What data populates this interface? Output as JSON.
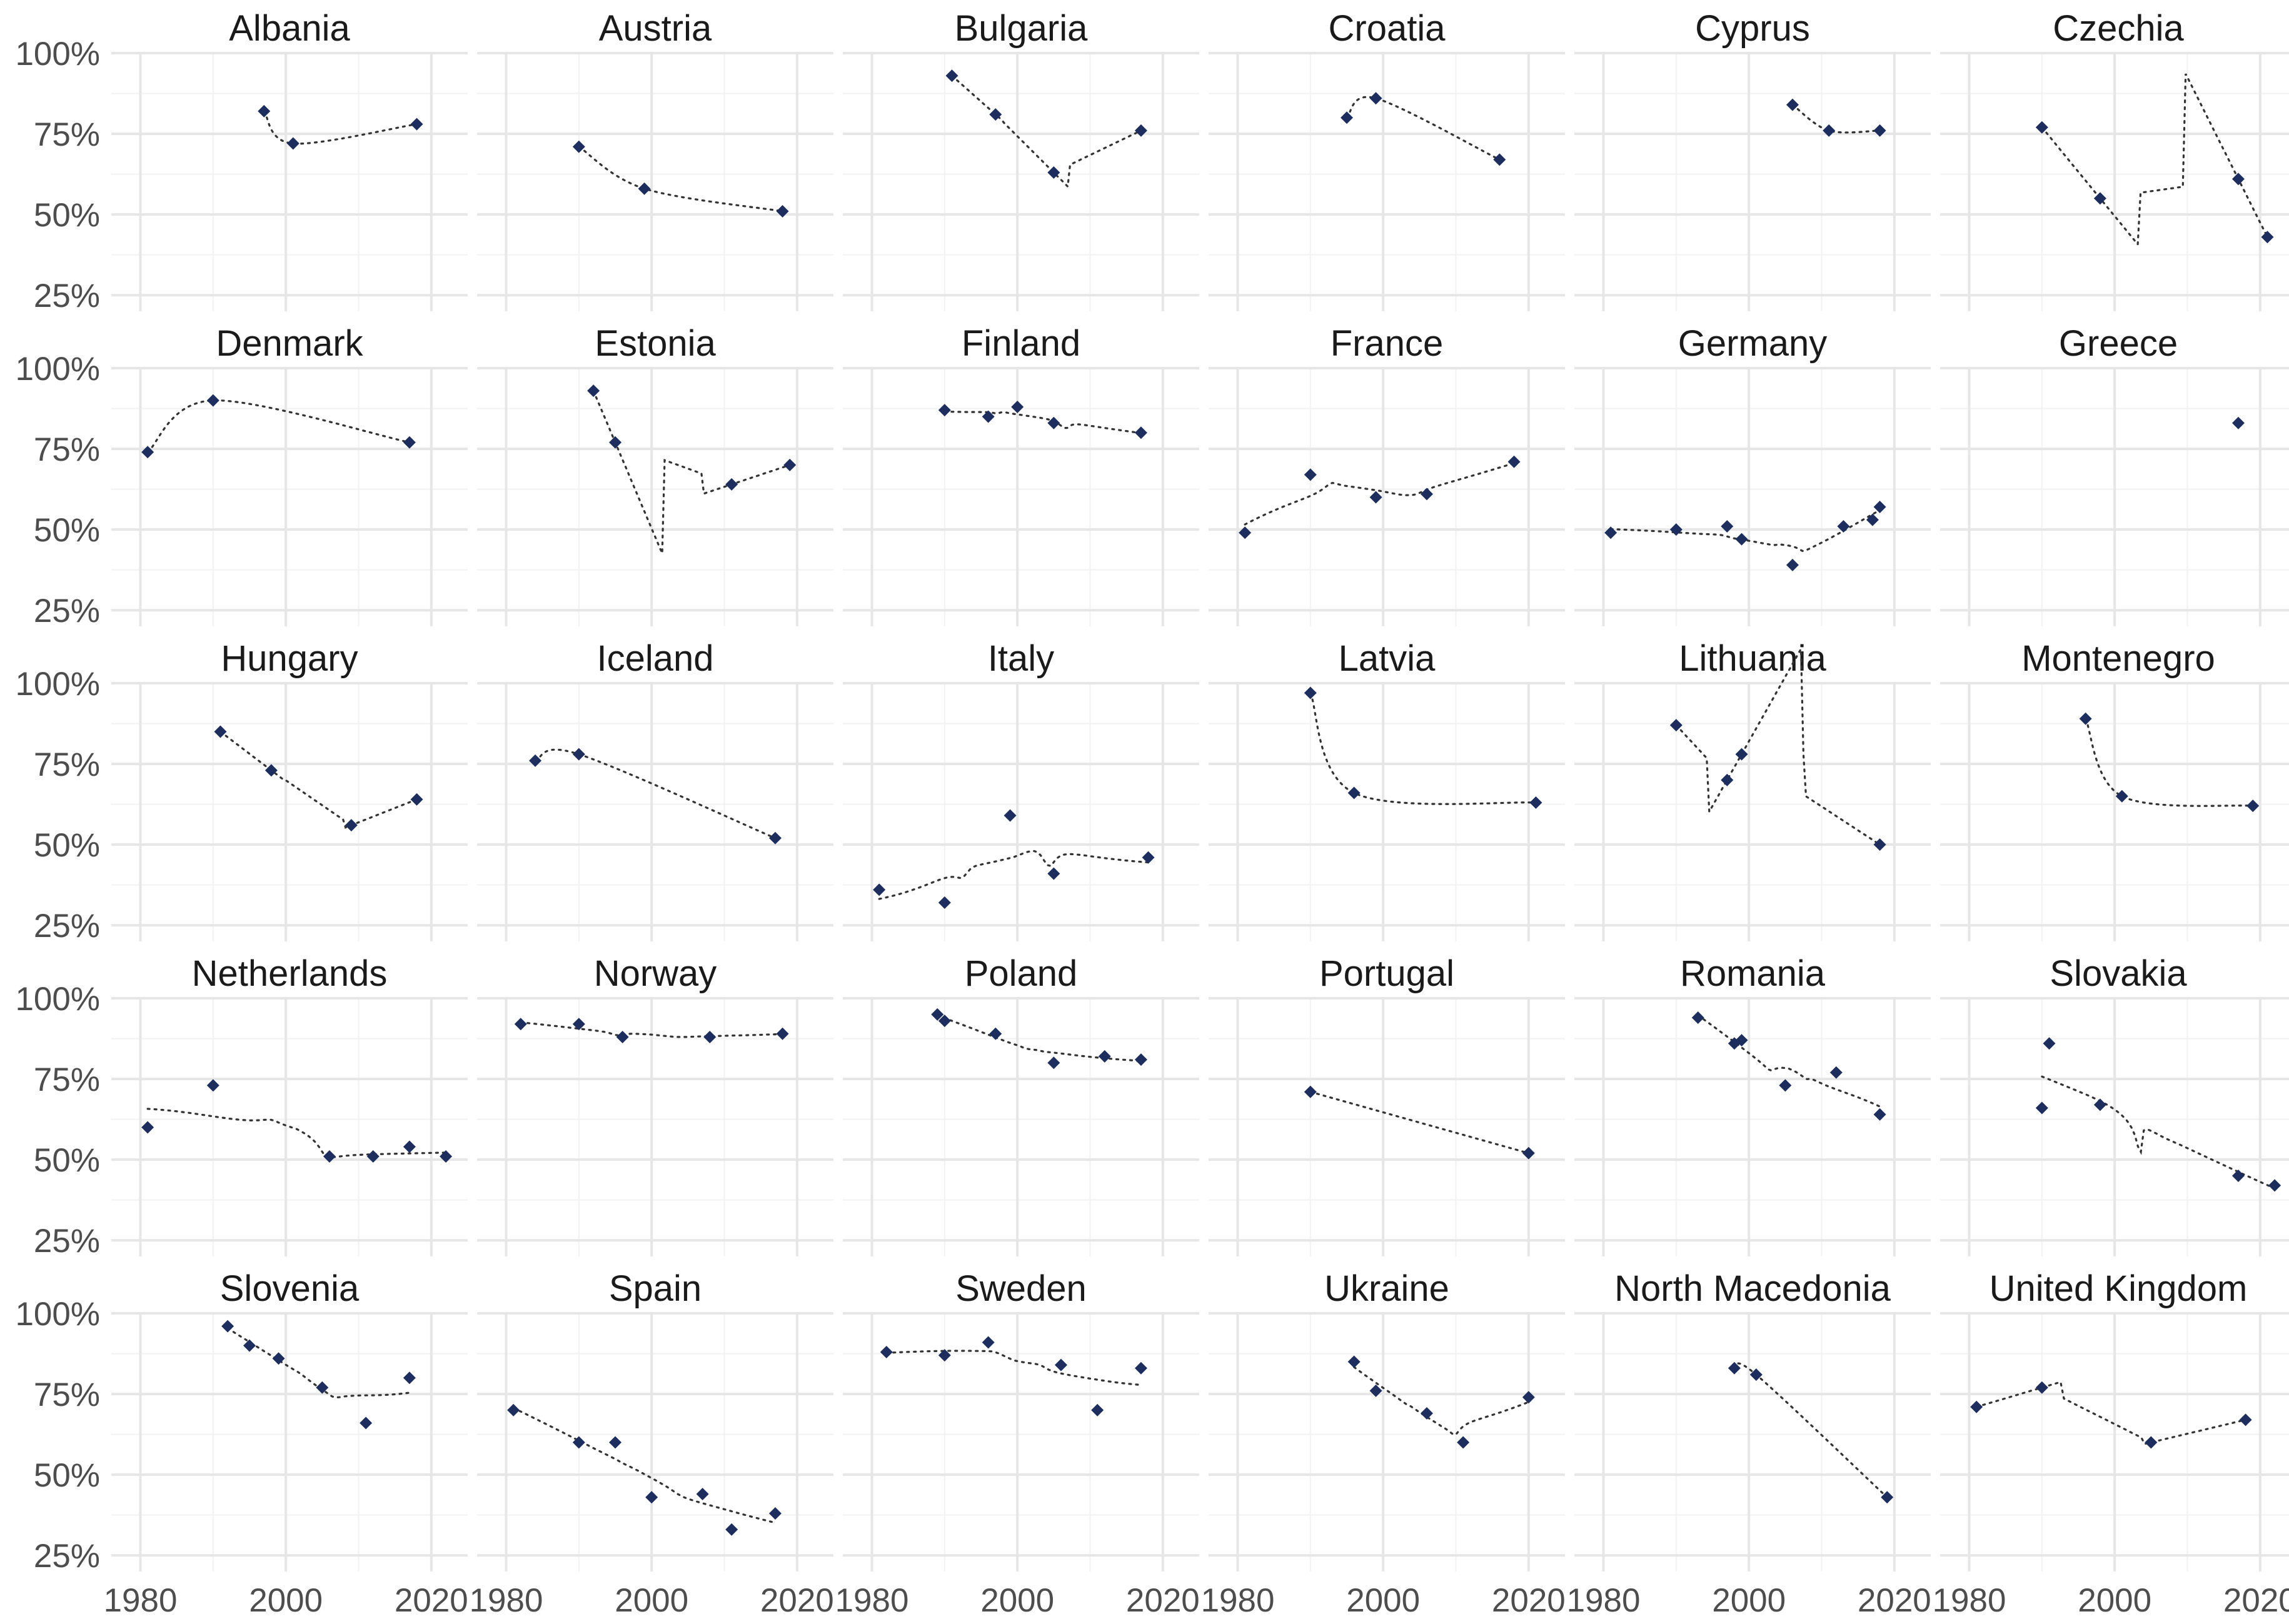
{
  "colors": {
    "point": "#1c2d5e",
    "trend": "#333333",
    "grid": "#e6e6e6",
    "background": "#ffffff"
  },
  "chart_data": {
    "type": "scatter",
    "facet_layout": {
      "columns": 6,
      "rows": 5
    },
    "xlim": [
      1976,
      2025
    ],
    "ylim": [
      0.2,
      1.0
    ],
    "x_ticks": [
      1980,
      2000,
      2020
    ],
    "y_ticks": [
      0.25,
      0.5,
      0.75,
      1.0
    ],
    "y_tick_labels": [
      "25%",
      "50%",
      "75%",
      "100%"
    ],
    "x_tick_labels": [
      "1980",
      "2000",
      "2020"
    ],
    "grid": true,
    "smoothing": "loess, dotted",
    "panels": [
      {
        "name": "Albania",
        "points": [
          [
            1997,
            0.82
          ],
          [
            2001,
            0.72
          ],
          [
            2018,
            0.78
          ]
        ]
      },
      {
        "name": "Austria",
        "points": [
          [
            1990,
            0.71
          ],
          [
            1999,
            0.58
          ],
          [
            2018,
            0.51
          ]
        ]
      },
      {
        "name": "Bulgaria",
        "points": [
          [
            1991,
            0.93
          ],
          [
            1997,
            0.81
          ],
          [
            2005,
            0.63
          ],
          [
            2017,
            0.76
          ]
        ]
      },
      {
        "name": "Croatia",
        "points": [
          [
            1995,
            0.8
          ],
          [
            1999,
            0.86
          ],
          [
            2016,
            0.67
          ]
        ]
      },
      {
        "name": "Cyprus",
        "points": [
          [
            2006,
            0.84
          ],
          [
            2011,
            0.76
          ],
          [
            2018,
            0.76
          ]
        ]
      },
      {
        "name": "Czechia",
        "points": [
          [
            1990,
            0.77
          ],
          [
            1998,
            0.55
          ],
          [
            2017,
            0.61
          ],
          [
            2021,
            0.43
          ]
        ]
      },
      {
        "name": "Denmark",
        "points": [
          [
            1981,
            0.74
          ],
          [
            1990,
            0.9
          ],
          [
            2017,
            0.77
          ]
        ]
      },
      {
        "name": "Estonia",
        "points": [
          [
            1992,
            0.93
          ],
          [
            1995,
            0.77
          ],
          [
            2011,
            0.64
          ],
          [
            2019,
            0.7
          ]
        ]
      },
      {
        "name": "Finland",
        "points": [
          [
            1990,
            0.87
          ],
          [
            1996,
            0.85
          ],
          [
            2000,
            0.88
          ],
          [
            2005,
            0.83
          ],
          [
            2017,
            0.8
          ]
        ]
      },
      {
        "name": "France",
        "points": [
          [
            1981,
            0.49
          ],
          [
            1990,
            0.67
          ],
          [
            1999,
            0.6
          ],
          [
            2006,
            0.61
          ],
          [
            2018,
            0.71
          ]
        ]
      },
      {
        "name": "Germany",
        "points": [
          [
            1981,
            0.49
          ],
          [
            1990,
            0.5
          ],
          [
            1997,
            0.51
          ],
          [
            1999,
            0.47
          ],
          [
            2006,
            0.39
          ],
          [
            2013,
            0.51
          ],
          [
            2017,
            0.53
          ],
          [
            2018,
            0.57
          ]
        ]
      },
      {
        "name": "Greece",
        "points": [
          [
            2017,
            0.83
          ]
        ]
      },
      {
        "name": "Hungary",
        "points": [
          [
            1991,
            0.85
          ],
          [
            1998,
            0.73
          ],
          [
            2009,
            0.56
          ],
          [
            2018,
            0.64
          ]
        ]
      },
      {
        "name": "Iceland",
        "points": [
          [
            1984,
            0.76
          ],
          [
            1990,
            0.78
          ],
          [
            2017,
            0.52
          ]
        ]
      },
      {
        "name": "Italy",
        "points": [
          [
            1981,
            0.36
          ],
          [
            1990,
            0.32
          ],
          [
            1999,
            0.59
          ],
          [
            2005,
            0.41
          ],
          [
            2018,
            0.46
          ]
        ]
      },
      {
        "name": "Latvia",
        "points": [
          [
            1990,
            0.97
          ],
          [
            1996,
            0.66
          ],
          [
            2021,
            0.63
          ]
        ]
      },
      {
        "name": "Lithuania",
        "points": [
          [
            1990,
            0.87
          ],
          [
            1997,
            0.7
          ],
          [
            1999,
            0.78
          ],
          [
            2018,
            0.5
          ]
        ]
      },
      {
        "name": "Montenegro",
        "points": [
          [
            1996,
            0.89
          ],
          [
            2001,
            0.65
          ],
          [
            2019,
            0.62
          ]
        ]
      },
      {
        "name": "Netherlands",
        "points": [
          [
            1981,
            0.6
          ],
          [
            1990,
            0.73
          ],
          [
            2006,
            0.51
          ],
          [
            2012,
            0.51
          ],
          [
            2017,
            0.54
          ],
          [
            2022,
            0.51
          ]
        ]
      },
      {
        "name": "Norway",
        "points": [
          [
            1982,
            0.92
          ],
          [
            1990,
            0.92
          ],
          [
            1996,
            0.88
          ],
          [
            2008,
            0.88
          ],
          [
            2018,
            0.89
          ]
        ]
      },
      {
        "name": "Poland",
        "points": [
          [
            1989,
            0.95
          ],
          [
            1990,
            0.93
          ],
          [
            1997,
            0.89
          ],
          [
            2005,
            0.8
          ],
          [
            2012,
            0.82
          ],
          [
            2017,
            0.81
          ]
        ]
      },
      {
        "name": "Portugal",
        "points": [
          [
            1990,
            0.71
          ],
          [
            2020,
            0.52
          ]
        ]
      },
      {
        "name": "Romania",
        "points": [
          [
            1993,
            0.94
          ],
          [
            1998,
            0.86
          ],
          [
            1999,
            0.87
          ],
          [
            2005,
            0.73
          ],
          [
            2012,
            0.77
          ],
          [
            2018,
            0.64
          ]
        ]
      },
      {
        "name": "Slovakia",
        "points": [
          [
            1990,
            0.66
          ],
          [
            1991,
            0.86
          ],
          [
            1998,
            0.67
          ],
          [
            2017,
            0.45
          ],
          [
            2022,
            0.42
          ]
        ]
      },
      {
        "name": "Slovenia",
        "points": [
          [
            1992,
            0.96
          ],
          [
            1995,
            0.9
          ],
          [
            1999,
            0.86
          ],
          [
            2005,
            0.77
          ],
          [
            2011,
            0.66
          ],
          [
            2017,
            0.8
          ]
        ]
      },
      {
        "name": "Spain",
        "points": [
          [
            1981,
            0.7
          ],
          [
            1990,
            0.6
          ],
          [
            1995,
            0.6
          ],
          [
            2000,
            0.43
          ],
          [
            2007,
            0.44
          ],
          [
            2011,
            0.33
          ],
          [
            2017,
            0.38
          ]
        ]
      },
      {
        "name": "Sweden",
        "points": [
          [
            1982,
            0.88
          ],
          [
            1990,
            0.87
          ],
          [
            1996,
            0.91
          ],
          [
            2006,
            0.84
          ],
          [
            2011,
            0.7
          ],
          [
            2017,
            0.83
          ]
        ]
      },
      {
        "name": "Ukraine",
        "points": [
          [
            1996,
            0.85
          ],
          [
            1999,
            0.76
          ],
          [
            2006,
            0.69
          ],
          [
            2011,
            0.6
          ],
          [
            2020,
            0.74
          ]
        ]
      },
      {
        "name": "North Macedonia",
        "points": [
          [
            1998,
            0.83
          ],
          [
            2001,
            0.81
          ],
          [
            2019,
            0.43
          ]
        ]
      },
      {
        "name": "United Kingdom",
        "points": [
          [
            1981,
            0.71
          ],
          [
            1990,
            0.77
          ],
          [
            2005,
            0.6
          ],
          [
            2018,
            0.67
          ]
        ]
      }
    ]
  }
}
